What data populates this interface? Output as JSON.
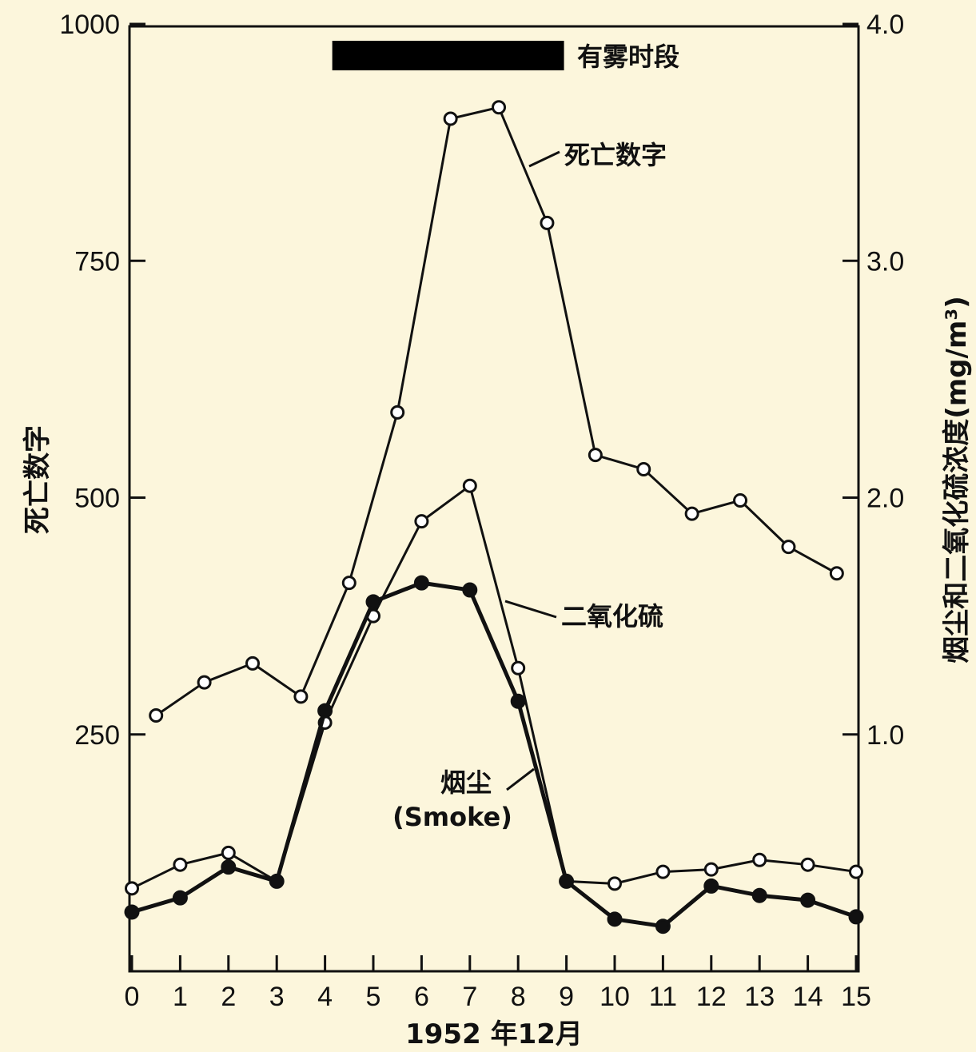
{
  "chart_data": {
    "type": "line",
    "x_ticks": [
      0,
      1,
      2,
      3,
      4,
      5,
      6,
      7,
      8,
      9,
      10,
      11,
      12,
      13,
      14,
      15
    ],
    "xlabel": "1952 年12月",
    "xlim": [
      0,
      15
    ],
    "ylabel_left": "死亡数字",
    "ylim_left": [
      0,
      1000
    ],
    "yticks_left": [
      "1000",
      "750",
      "500",
      "250"
    ],
    "ylabel_right": "烟尘和二氧化硫浓度(mg/m³)",
    "ylim_right": [
      0,
      4.0
    ],
    "yticks_right": [
      "4.0",
      "3.0",
      "2.0",
      "1.0"
    ],
    "fog_period": {
      "label": "有雾时段",
      "x_start": 4.15,
      "x_end": 8.95
    },
    "series": [
      {
        "name": "死亡数字",
        "axis": "left",
        "marker": "open",
        "x": [
          0.5,
          1.5,
          2.5,
          3.5,
          4.5,
          5.5,
          6.6,
          7.6,
          8.6,
          9.6,
          10.6,
          11.6,
          12.6,
          13.6,
          14.6
        ],
        "y": [
          270,
          305,
          325,
          290,
          410,
          590,
          900,
          912,
          790,
          545,
          530,
          483,
          497,
          448,
          420
        ]
      },
      {
        "name": "二氧化硫",
        "axis": "right",
        "marker": "open",
        "x": [
          0,
          1,
          2,
          3,
          4,
          5,
          6,
          7,
          8,
          9,
          10,
          11,
          12,
          13,
          14,
          15
        ],
        "y": [
          0.35,
          0.45,
          0.5,
          0.38,
          1.05,
          1.5,
          1.9,
          2.05,
          1.28,
          0.38,
          0.37,
          0.42,
          0.43,
          0.47,
          0.45,
          0.42
        ]
      },
      {
        "name": "烟尘",
        "axis": "right",
        "marker": "filled",
        "x": [
          0,
          1,
          2,
          3,
          4,
          5,
          6,
          7,
          8,
          9,
          10,
          11,
          12,
          13,
          14,
          15
        ],
        "y": [
          0.25,
          0.31,
          0.44,
          0.38,
          1.1,
          1.56,
          1.64,
          1.61,
          1.14,
          0.38,
          0.22,
          0.19,
          0.36,
          0.32,
          0.3,
          0.23
        ]
      }
    ],
    "annotations": {
      "deaths": "死亡数字",
      "so2": "二氧化硫",
      "smoke_cn": "烟尘",
      "smoke_en": "(Smoke)"
    },
    "grid": false,
    "legend": "none"
  }
}
